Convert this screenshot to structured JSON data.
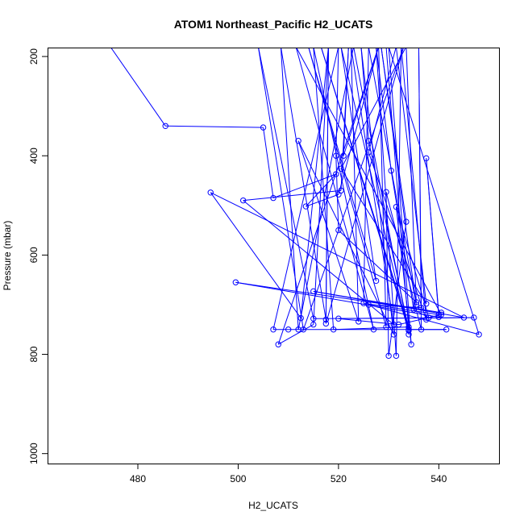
{
  "chart_data": {
    "type": "line",
    "title": "ATOM1 Northeast_Pacific H2_UCATS",
    "xlabel": "H2_UCATS",
    "ylabel": "Pressure (mbar)",
    "xlim": [
      462,
      552
    ],
    "ylim": [
      1020,
      182
    ],
    "y_reversed": true,
    "xticks": [
      480,
      500,
      520,
      540
    ],
    "yticks": [
      200,
      400,
      600,
      800,
      1000
    ],
    "grid": false,
    "color": "#0000ff",
    "series": [
      {
        "points": [
          [
            474.5,
            180
          ],
          [
            485.5,
            340
          ],
          [
            505,
            343
          ],
          [
            507,
            485
          ],
          [
            519.5,
            437
          ],
          [
            513.5,
            502
          ],
          [
            520,
            478
          ],
          [
            528,
            180
          ],
          [
            521,
            400
          ],
          [
            522,
            180
          ],
          [
            520.5,
            470
          ],
          [
            501,
            490
          ],
          [
            531,
            740
          ],
          [
            522.5,
            180
          ],
          [
            524,
            734
          ],
          [
            512,
            370
          ],
          [
            531,
            760
          ],
          [
            524.5,
            180
          ],
          [
            526,
            370
          ],
          [
            534,
            750
          ],
          [
            541.5,
            750
          ],
          [
            510,
            750
          ],
          [
            507,
            750
          ],
          [
            520,
            180
          ],
          [
            519.5,
            400
          ],
          [
            520,
            550
          ],
          [
            535.5,
            695
          ],
          [
            533.5,
            180
          ],
          [
            520.5,
            426
          ],
          [
            537.5,
            698
          ],
          [
            531.5,
            180
          ],
          [
            526,
            393
          ],
          [
            537.5,
            730
          ],
          [
            532.5,
            180
          ],
          [
            531.5,
            803
          ],
          [
            527.5,
            180
          ],
          [
            530.5,
            430
          ],
          [
            535,
            710
          ],
          [
            538,
            726
          ],
          [
            531.5,
            503
          ],
          [
            534.5,
            780
          ],
          [
            530,
            180
          ],
          [
            548,
            760
          ],
          [
            526,
            700
          ],
          [
            536.5,
            706
          ],
          [
            536,
            180
          ],
          [
            536.5,
            750
          ],
          [
            529.5,
            473
          ],
          [
            530,
            803
          ],
          [
            533.5,
            533
          ],
          [
            528.5,
            180
          ],
          [
            535.5,
            700
          ],
          [
            526,
            180
          ],
          [
            525,
            697
          ],
          [
            540,
            720
          ],
          [
            537.5,
            405
          ],
          [
            540,
            725
          ],
          [
            499.5,
            655
          ],
          [
            540.5,
            716
          ],
          [
            515,
            673
          ],
          [
            545,
            726
          ],
          [
            494.5,
            474
          ],
          [
            512.5,
            727
          ],
          [
            518,
            180
          ],
          [
            515,
            740
          ],
          [
            508,
            780
          ],
          [
            528,
            180
          ],
          [
            529.5,
            745
          ],
          [
            514,
            180
          ],
          [
            527.5,
            652
          ],
          [
            520.5,
            180
          ],
          [
            534,
            760
          ],
          [
            523,
            180
          ],
          [
            512,
            750
          ],
          [
            508.5,
            180
          ],
          [
            517.5,
            730
          ],
          [
            518,
            180
          ],
          [
            517.5,
            738
          ],
          [
            533,
            180
          ],
          [
            513,
            750
          ],
          [
            504,
            180
          ],
          [
            515,
            728
          ],
          [
            547,
            726
          ],
          [
            520,
            728
          ],
          [
            532,
            740
          ],
          [
            540.5,
            720
          ],
          [
            511.5,
            180
          ],
          [
            527,
            750
          ],
          [
            515,
            180
          ],
          [
            519,
            750
          ],
          [
            534,
            745
          ],
          [
            516.5,
            180
          ],
          [
            534,
            752
          ],
          [
            529.5,
            180
          ]
        ]
      }
    ]
  }
}
